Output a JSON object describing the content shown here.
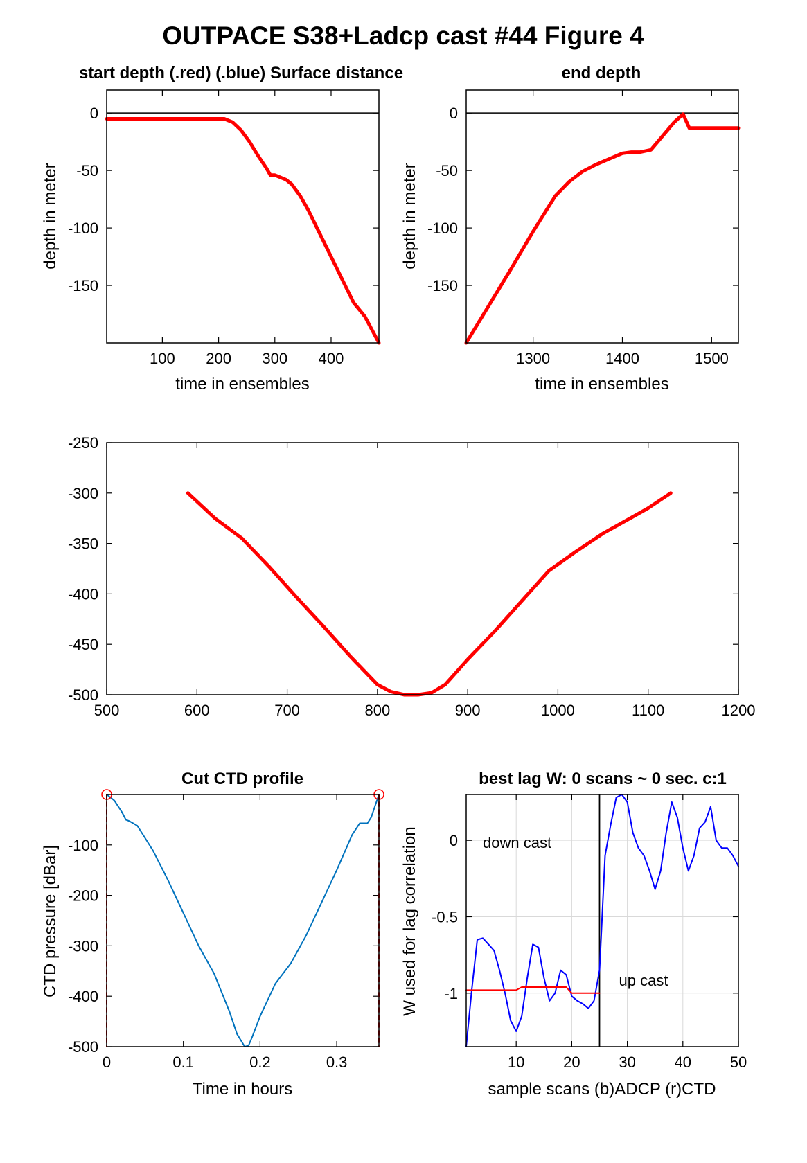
{
  "figure": {
    "title": "OUTPACE S38+Ladcp cast #44   Figure 4"
  },
  "chart_data": [
    {
      "id": "start_depth",
      "type": "line",
      "title": "start depth (.red) (.blue) Surface distance",
      "xlabel": "time in ensembles",
      "ylabel": "depth in meter",
      "xlim": [
        1,
        485
      ],
      "ylim": [
        -200,
        20
      ],
      "xticks": [
        100,
        200,
        300,
        400
      ],
      "yticks": [
        0,
        -50,
        -100,
        -150
      ],
      "grid": false,
      "hline": 0,
      "series": [
        {
          "color": "#ff0000",
          "width": 5,
          "x": [
            1,
            100,
            200,
            210,
            225,
            240,
            255,
            270,
            285,
            292,
            300,
            310,
            320,
            330,
            345,
            360,
            380,
            400,
            420,
            440,
            460,
            485
          ],
          "y": [
            -5,
            -5,
            -5,
            -5,
            -8,
            -15,
            -25,
            -37,
            -48,
            -54,
            -54,
            -56,
            -58,
            -62,
            -72,
            -85,
            -105,
            -125,
            -145,
            -165,
            -177,
            -200
          ]
        }
      ]
    },
    {
      "id": "end_depth",
      "type": "line",
      "title": "end depth",
      "xlabel": "time in ensembles",
      "ylabel": "depth in meter",
      "xlim": [
        1225,
        1530
      ],
      "ylim": [
        -200,
        20
      ],
      "xticks": [
        1300,
        1400,
        1500
      ],
      "yticks": [
        0,
        -50,
        -100,
        -150
      ],
      "grid": false,
      "hline": 0,
      "series": [
        {
          "color": "#ff0000",
          "width": 5,
          "x": [
            1225,
            1250,
            1275,
            1300,
            1325,
            1340,
            1355,
            1370,
            1385,
            1400,
            1410,
            1420,
            1432,
            1445,
            1458,
            1468,
            1475,
            1500,
            1530
          ],
          "y": [
            -200,
            -168,
            -136,
            -103,
            -72,
            -60,
            -51,
            -45,
            -40,
            -35,
            -34,
            -34,
            -32,
            -20,
            -8,
            -1,
            -13,
            -13,
            -13
          ]
        }
      ]
    },
    {
      "id": "middle",
      "type": "line",
      "title": "",
      "xlabel": "",
      "ylabel": "",
      "xlim": [
        500,
        1200
      ],
      "ylim": [
        -500,
        -250
      ],
      "xticks": [
        500,
        600,
        700,
        800,
        900,
        1000,
        1100,
        1200
      ],
      "yticks": [
        -250,
        -300,
        -350,
        -400,
        -450,
        -500
      ],
      "grid": false,
      "series": [
        {
          "color": "#ff0000",
          "width": 5,
          "x": [
            590,
            620,
            650,
            680,
            710,
            740,
            770,
            800,
            815,
            830,
            845,
            860,
            875,
            900,
            930,
            960,
            990,
            1020,
            1050,
            1080,
            1100,
            1125
          ],
          "y": [
            -300,
            -325,
            -345,
            -373,
            -403,
            -432,
            -462,
            -490,
            -497,
            -500,
            -500,
            -498,
            -490,
            -465,
            -437,
            -407,
            -377,
            -358,
            -340,
            -325,
            -315,
            -300
          ]
        }
      ]
    },
    {
      "id": "cut_ctd",
      "type": "line",
      "title": "Cut CTD profile",
      "xlabel": "Time in hours",
      "ylabel": "CTD pressure [dBar]",
      "xlim": [
        0,
        0.355
      ],
      "ylim": [
        -500,
        0
      ],
      "xticks": [
        0,
        0.1,
        0.2,
        0.3
      ],
      "yticks": [
        -100,
        -200,
        -300,
        -400,
        -500
      ],
      "grid": false,
      "series": [
        {
          "color": "#0072bd",
          "width": 2,
          "x": [
            0,
            0.01,
            0.02,
            0.025,
            0.03,
            0.04,
            0.06,
            0.08,
            0.1,
            0.12,
            0.14,
            0.16,
            0.17,
            0.18,
            0.185,
            0.19,
            0.2,
            0.22,
            0.24,
            0.26,
            0.28,
            0.3,
            0.32,
            0.33,
            0.34,
            0.345,
            0.355
          ],
          "y": [
            0,
            -12,
            -35,
            -50,
            -53,
            -62,
            -110,
            -170,
            -235,
            -300,
            -355,
            -430,
            -475,
            -500,
            -498,
            -480,
            -440,
            -375,
            -335,
            -280,
            -215,
            -150,
            -80,
            -57,
            -57,
            -45,
            0
          ]
        },
        {
          "color": "#ff0000",
          "width": 2,
          "dashed": true,
          "x": [
            0,
            0
          ],
          "y": [
            0,
            -500
          ]
        },
        {
          "color": "#ff0000",
          "width": 2,
          "dashed": true,
          "x": [
            0.355,
            0.355
          ],
          "y": [
            0,
            -500
          ]
        }
      ],
      "markers": [
        {
          "x": 0,
          "y": 0,
          "color": "#ff0000",
          "shape": "circle"
        },
        {
          "x": 0.355,
          "y": 0,
          "color": "#ff0000",
          "shape": "circle"
        }
      ]
    },
    {
      "id": "best_lag",
      "type": "line",
      "title": "best lag W: 0 scans ~ 0 sec.  c:1",
      "xlabel": "sample scans (b)ADCP (r)CTD",
      "ylabel": "W used for lag correlation",
      "xlim": [
        1,
        50
      ],
      "ylim": [
        -1.35,
        0.3
      ],
      "xticks": [
        10,
        20,
        30,
        40,
        50
      ],
      "yticks": [
        0,
        -0.5,
        -1
      ],
      "grid": true,
      "vline": 25,
      "annotations": [
        {
          "text": "down cast",
          "x": 4,
          "y": -0.05
        },
        {
          "text": "up cast",
          "x": 28.5,
          "y": -0.95
        }
      ],
      "series": [
        {
          "color": "#0000ff",
          "width": 2,
          "x": [
            1,
            2,
            3,
            4,
            5,
            6,
            7,
            8,
            9,
            10,
            11,
            12,
            13,
            14,
            15,
            16,
            17,
            18,
            19,
            20,
            21,
            22,
            23,
            24,
            25,
            26,
            27,
            28,
            29,
            30,
            31,
            32,
            33,
            34,
            35,
            36,
            37,
            38,
            39,
            40,
            41,
            42,
            43,
            44,
            45,
            46,
            47,
            48,
            49,
            50
          ],
          "y": [
            -1.35,
            -0.98,
            -0.65,
            -0.64,
            -0.68,
            -0.72,
            -0.85,
            -1.0,
            -1.18,
            -1.25,
            -1.15,
            -0.9,
            -0.68,
            -0.7,
            -0.9,
            -1.05,
            -1.0,
            -0.85,
            -0.88,
            -1.02,
            -1.05,
            -1.07,
            -1.1,
            -1.05,
            -0.85,
            -0.1,
            0.1,
            0.28,
            0.3,
            0.25,
            0.05,
            -0.05,
            -0.1,
            -0.2,
            -0.32,
            -0.2,
            0.05,
            0.25,
            0.15,
            -0.05,
            -0.2,
            -0.1,
            0.08,
            0.12,
            0.22,
            0.0,
            -0.05,
            -0.05,
            -0.1,
            -0.17
          ]
        },
        {
          "color": "#ff0000",
          "width": 2,
          "x": [
            1,
            2,
            4,
            6,
            8,
            10,
            11,
            13,
            15,
            17,
            18,
            19,
            20,
            22,
            24,
            25
          ],
          "y": [
            -0.98,
            -0.98,
            -0.98,
            -0.98,
            -0.98,
            -0.98,
            -0.96,
            -0.96,
            -0.96,
            -0.96,
            -0.96,
            -0.96,
            -1.0,
            -1.0,
            -1.0,
            -1.0
          ]
        }
      ]
    }
  ]
}
